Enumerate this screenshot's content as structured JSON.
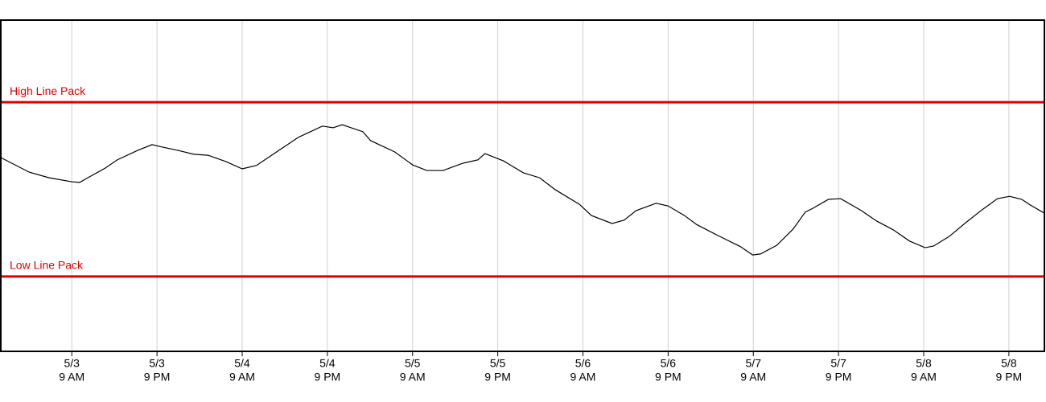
{
  "chart_data": {
    "type": "line",
    "x": [
      -10,
      -6.0,
      -3.2,
      0,
      1.1,
      2.5,
      4.7,
      6.4,
      9.3,
      11.3,
      12.7,
      14.9,
      17.2,
      19.2,
      21.7,
      24.0,
      26.0,
      28.5,
      31.9,
      35.3,
      36.8,
      38.1,
      41.0,
      42.1,
      45.5,
      48.0,
      50.0,
      52.3,
      55.1,
      57.2,
      58.2,
      60.8,
      63.6,
      65.9,
      68.1,
      71.5,
      73.2,
      76.1,
      77.8,
      79.5,
      82.3,
      84.0,
      86.3,
      88.0,
      90.8,
      94.2,
      95.9,
      97.0,
      99.3,
      101.6,
      103.3,
      104.4,
      106.6,
      108.3,
      111.2,
      113.4,
      115.7,
      118.0,
      120.2,
      121.4,
      123.6,
      125.9,
      128.2,
      130.4,
      132.1,
      133.8,
      135.0,
      137
    ],
    "series": [
      {
        "color": "#000000",
        "values": [
          58.5,
          54.1,
          52.4,
          51.2,
          51.0,
          52.7,
          55.3,
          57.8,
          60.7,
          62.4,
          61.7,
          60.7,
          59.5,
          59.2,
          57.3,
          55.1,
          56.1,
          59.7,
          64.6,
          68.0,
          67.5,
          68.4,
          66.3,
          63.6,
          60.2,
          56.3,
          54.6,
          54.6,
          56.8,
          57.8,
          59.7,
          57.5,
          53.9,
          52.4,
          48.8,
          44.4,
          41.0,
          38.6,
          39.6,
          42.5,
          44.7,
          43.9,
          41.0,
          38.3,
          35.2,
          31.6,
          29.1,
          29.4,
          32.0,
          36.9,
          42.0,
          43.2,
          45.9,
          46.1,
          42.5,
          39.3,
          36.7,
          33.3,
          31.3,
          31.8,
          34.7,
          38.8,
          42.7,
          46.1,
          46.8,
          45.9,
          44.2,
          41.7
        ]
      }
    ],
    "thresholds": [
      {
        "label": "High Line Pack",
        "value": 75.2,
        "color": "#e00000"
      },
      {
        "label": "Low Line Pack",
        "value": 22.6,
        "color": "#e00000"
      }
    ],
    "xlim": [
      -10,
      137
    ],
    "ylim": [
      0,
      100
    ],
    "xticks": [
      {
        "value": 0,
        "label": [
          "5/3",
          "9 AM"
        ]
      },
      {
        "value": 12,
        "label": [
          "5/3",
          "9 PM"
        ]
      },
      {
        "value": 24,
        "label": [
          "5/4",
          "9 AM"
        ]
      },
      {
        "value": 36,
        "label": [
          "5/4",
          "9 PM"
        ]
      },
      {
        "value": 48,
        "label": [
          "5/5",
          "9 AM"
        ]
      },
      {
        "value": 60,
        "label": [
          "5/5",
          "9 PM"
        ]
      },
      {
        "value": 72,
        "label": [
          "5/6",
          "9 AM"
        ]
      },
      {
        "value": 84,
        "label": [
          "5/6",
          "9 PM"
        ]
      },
      {
        "value": 96,
        "label": [
          "5/7",
          "9 AM"
        ]
      },
      {
        "value": 108,
        "label": [
          "5/7",
          "9 PM"
        ]
      },
      {
        "value": 120,
        "label": [
          "5/8",
          "9 AM"
        ]
      },
      {
        "value": 132,
        "label": [
          "5/8",
          "9 PM"
        ]
      }
    ],
    "grid": true
  }
}
